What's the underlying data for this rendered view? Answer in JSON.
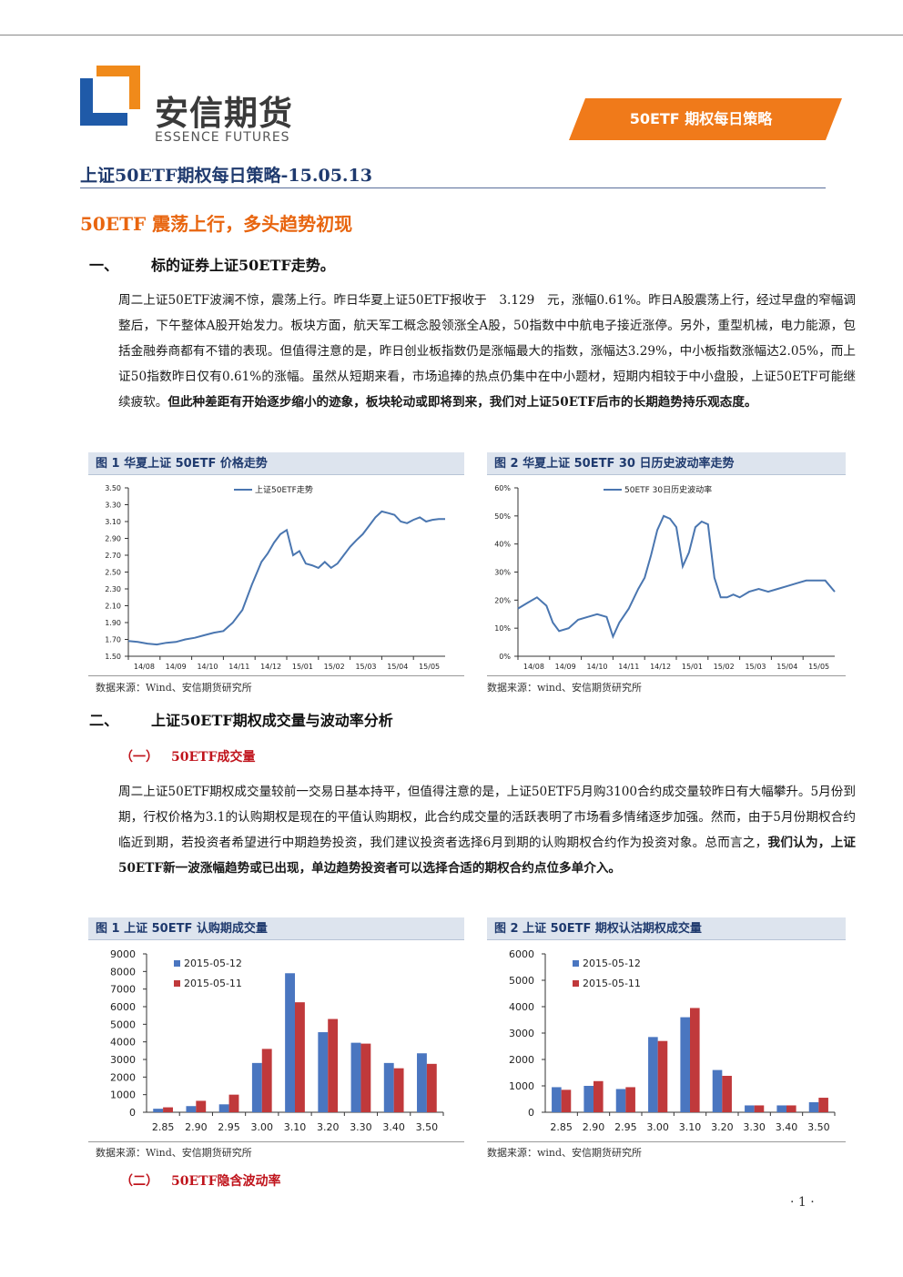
{
  "header": {
    "logo_cn": "安信期货",
    "logo_en": "ESSENCE FUTURES",
    "banner": "50ETF 期权每日策略"
  },
  "doc_title": "上证50ETF期权每日策略-15.05.13",
  "subhead": "50ETF 震荡上行，多头趋势初现",
  "section1": {
    "num": "一、",
    "title": "标的证券上证50ETF走势。",
    "para_normal": "周二上证50ETF波澜不惊，震荡上行。昨日华夏上证50ETF报收于　3.129　元，涨幅0.61%。昨日A股震荡上行，经过早盘的窄幅调整后，下午整体A股开始发力。板块方面，航天军工概念股领涨全A股，50指数中中航电子接近涨停。另外，重型机械，电力能源，包括金融券商都有不错的表现。但值得注意的是，昨日创业板指数仍是涨幅最大的指数，涨幅达3.29%，中小板指数涨幅达2.05%，而上证50指数昨日仅有0.61%的涨幅。虽然从短期来看，市场追捧的热点仍集中在中小题材，短期内相较于中小盘股，上证50ETF可能继续疲软。",
    "para_bold": "但此种差距有开始逐步缩小的迹象，板块轮动或即将到来，我们对上证50ETF后市的长期趋势持乐观态度。"
  },
  "fig1": {
    "title": "图 1 华夏上证 50ETF 价格走势",
    "source": "数据来源：Wind、安信期货研究所"
  },
  "fig2": {
    "title": "图 2 华夏上证 50ETF 30 日历史波动率走势",
    "source": "数据来源：wind、安信期货研究所"
  },
  "section2": {
    "num": "二、",
    "title": "上证50ETF期权成交量与波动率分析",
    "sub1_num": "（一）",
    "sub1_title": "50ETF成交量",
    "para_normal": "周二上证50ETF期权成交量较前一交易日基本持平，但值得注意的是，上证50ETF5月购3100合约成交量较昨日有大幅攀升。5月份到期，行权价格为3.1的认购期权是现在的平值认购期权，此合约成交量的活跃表明了市场看多情绪逐步加强。然而，由于5月份期权合约临近到期，若投资者希望进行中期趋势投资，我们建议投资者选择6月到期的认购期权合约作为投资对象。总而言之，",
    "para_bold": "我们认为，上证50ETF新一波涨幅趋势或已出现，单边趋势投资者可以选择合适的期权合约点位多单介入。",
    "sub2_num": "（二）",
    "sub2_title": "50ETF隐含波动率"
  },
  "fig3": {
    "title": "图 1 上证 50ETF 认购期成交量",
    "source": "数据来源：Wind、安信期货研究所"
  },
  "fig4": {
    "title": "图 2 上证 50ETF 期权认沽期权成交量",
    "source": "数据来源：wind、安信期货研究所"
  },
  "page_number": "· 1 ·",
  "colors": {
    "navy": "#1f3a6e",
    "orange": "#f07a1a",
    "line": "#4a76b0",
    "bar_blue": "#4a76c0",
    "bar_red": "#c0393b"
  },
  "chart_data": [
    {
      "type": "line",
      "legend": "上证50ETF走势",
      "x_ticks": [
        "14/08",
        "14/09",
        "14/10",
        "14/11",
        "14/12",
        "15/01",
        "15/02",
        "15/03",
        "15/04",
        "15/05"
      ],
      "y_ticks": [
        "1.50",
        "1.70",
        "1.90",
        "2.10",
        "2.30",
        "2.50",
        "2.70",
        "2.90",
        "3.10",
        "3.30",
        "3.50"
      ],
      "ylim": [
        1.5,
        3.5
      ],
      "x": [
        0,
        0.3,
        0.6,
        0.9,
        1.2,
        1.5,
        1.8,
        2.1,
        2.4,
        2.7,
        3.0,
        3.3,
        3.6,
        3.9,
        4.2,
        4.4,
        4.6,
        4.8,
        5.0,
        5.2,
        5.4,
        5.6,
        5.8,
        6.0,
        6.2,
        6.4,
        6.6,
        6.8,
        7.0,
        7.2,
        7.4,
        7.6,
        7.8,
        8.0,
        8.2,
        8.4,
        8.6,
        8.8,
        9.0,
        9.2,
        9.4,
        9.6,
        9.8,
        10.0
      ],
      "values": [
        1.68,
        1.67,
        1.65,
        1.64,
        1.66,
        1.67,
        1.7,
        1.72,
        1.75,
        1.78,
        1.8,
        1.9,
        2.05,
        2.35,
        2.62,
        2.72,
        2.85,
        2.95,
        3.0,
        2.7,
        2.75,
        2.6,
        2.58,
        2.55,
        2.62,
        2.55,
        2.6,
        2.7,
        2.8,
        2.88,
        2.95,
        3.05,
        3.15,
        3.22,
        3.2,
        3.18,
        3.1,
        3.08,
        3.12,
        3.15,
        3.1,
        3.12,
        3.13,
        3.13
      ]
    },
    {
      "type": "line",
      "legend": "50ETF 30日历史波动率",
      "x_ticks": [
        "14/08",
        "14/09",
        "14/10",
        "14/11",
        "14/12",
        "15/01",
        "15/02",
        "15/03",
        "15/04",
        "15/05"
      ],
      "y_ticks": [
        "0%",
        "10%",
        "20%",
        "30%",
        "40%",
        "50%",
        "60%"
      ],
      "ylim": [
        0,
        60
      ],
      "x": [
        0,
        0.3,
        0.6,
        0.9,
        1.1,
        1.3,
        1.6,
        1.9,
        2.2,
        2.5,
        2.8,
        3.0,
        3.2,
        3.5,
        3.8,
        4.0,
        4.2,
        4.4,
        4.6,
        4.8,
        5.0,
        5.2,
        5.4,
        5.6,
        5.8,
        6.0,
        6.2,
        6.4,
        6.6,
        6.8,
        7.0,
        7.3,
        7.6,
        7.9,
        8.2,
        8.5,
        8.8,
        9.1,
        9.4,
        9.7,
        10.0
      ],
      "values": [
        17,
        19,
        21,
        18,
        12,
        9,
        10,
        13,
        14,
        15,
        14,
        7,
        12,
        17,
        24,
        28,
        36,
        45,
        50,
        49,
        46,
        32,
        37,
        46,
        48,
        47,
        28,
        21,
        21,
        22,
        21,
        23,
        24,
        23,
        24,
        25,
        26,
        27,
        27,
        27,
        23
      ]
    },
    {
      "type": "bar",
      "categories": [
        "2.85",
        "2.90",
        "2.95",
        "3.00",
        "3.10",
        "3.20",
        "3.30",
        "3.40",
        "3.50"
      ],
      "ylim": [
        0,
        9000
      ],
      "y_ticks": [
        "0",
        "1000",
        "2000",
        "3000",
        "4000",
        "5000",
        "6000",
        "7000",
        "8000",
        "9000"
      ],
      "series": [
        {
          "name": "2015-05-12",
          "values": [
            200,
            350,
            450,
            2800,
            7900,
            4550,
            3950,
            2800,
            3350
          ]
        },
        {
          "name": "2015-05-11",
          "values": [
            280,
            650,
            1000,
            3600,
            6250,
            5300,
            3900,
            2500,
            2750
          ]
        }
      ]
    },
    {
      "type": "bar",
      "categories": [
        "2.85",
        "2.90",
        "2.95",
        "3.00",
        "3.10",
        "3.20",
        "3.30",
        "3.40",
        "3.50"
      ],
      "ylim": [
        0,
        6000
      ],
      "y_ticks": [
        "0",
        "1000",
        "2000",
        "3000",
        "4000",
        "5000",
        "6000"
      ],
      "series": [
        {
          "name": "2015-05-12",
          "values": [
            950,
            1000,
            880,
            2850,
            3600,
            1600,
            260,
            260,
            380
          ]
        },
        {
          "name": "2015-05-11",
          "values": [
            850,
            1180,
            950,
            2700,
            3950,
            1380,
            260,
            260,
            550
          ]
        }
      ]
    }
  ]
}
